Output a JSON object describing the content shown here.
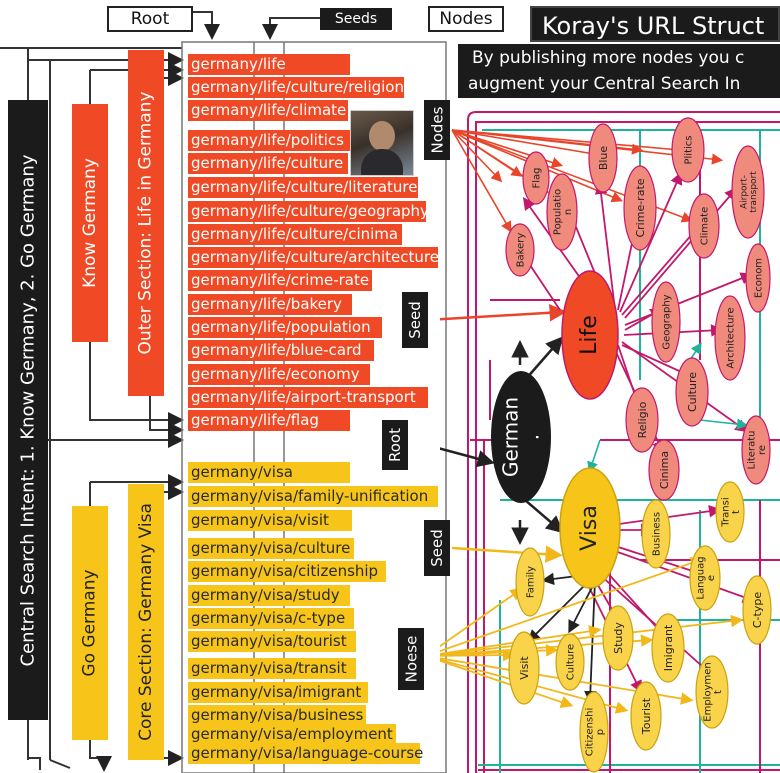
{
  "header": {
    "root_label": "Root",
    "seeds_label": "Seeds",
    "nodes_label": "Nodes",
    "title": "Koray's URL Struct",
    "subtitle_line1": "By publishing more nodes you c",
    "subtitle_line2": "augment your Central Search In"
  },
  "left": {
    "central_intent": "Central Search Intent: 1. Know Germany, 2. Go Germany",
    "know_germany": "Know Germany",
    "outer_section": "Outer Section: Life in Germany",
    "go_germany": "Go Germany",
    "core_section": "Core Section: Germany Visa"
  },
  "life_urls": [
    "germany/life",
    "germany/life/culture/religion",
    "germany/life/climate",
    "germany/life/politics",
    "germany/life/culture",
    "germany/life/culture/literature",
    "germany/life/culture/geography",
    "germany/life/culture/cinima",
    "germany/life/culture/architecture",
    "germany/life/crime-rate",
    "germany/life/bakery",
    "germany/life/population",
    "germany/life/blue-card",
    "germany/life/economy",
    "germany/life/airport-transport",
    "germany/life/flag"
  ],
  "visa_urls": [
    "germany/visa",
    "germany/visa/family-unification",
    "germany/visa/visit",
    "germany/visa/culture",
    "germany/visa/citizenship",
    "germany/visa/study",
    "germany/visa/c-type",
    "germany/visa/tourist",
    "germany/visa/transit",
    "germany/visa/imigrant",
    "germany/visa/business",
    "germany/visa/employment",
    "germany/visa/language-course"
  ],
  "tags": {
    "nodes": "Nodes",
    "seed_life": "Seed",
    "root": "Root",
    "seed_visa": "Seed",
    "noese": "Noese"
  },
  "graph": {
    "root_node": "German\n.",
    "life_node": "Life",
    "visa_node": "Visa",
    "life_children": [
      "Flag",
      "Blue",
      "Plitics",
      "Airport-\ntransport",
      "Populatio\nn",
      "Crime-rate",
      "Climate",
      "Bakery",
      "Econom",
      "Geography",
      "Architecture",
      "Religio",
      "Culture",
      "Cinima",
      "Literatu\nre"
    ],
    "visa_children": [
      "Business",
      "Transi\nt",
      "Family",
      "Languag\ne",
      "C-type",
      "Visit",
      "Culture",
      "Study",
      "Imigrant",
      "Employmen\nt",
      "Citizenshi\np",
      "Tourist"
    ]
  },
  "colors": {
    "life": "#ef4a25",
    "life_child": "#f08a7c",
    "visa": "#f7c51a",
    "visa_child": "#f9d34a",
    "root": "#1b1b1b",
    "magenta": "#c2186b",
    "teal": "#1fb39a"
  }
}
